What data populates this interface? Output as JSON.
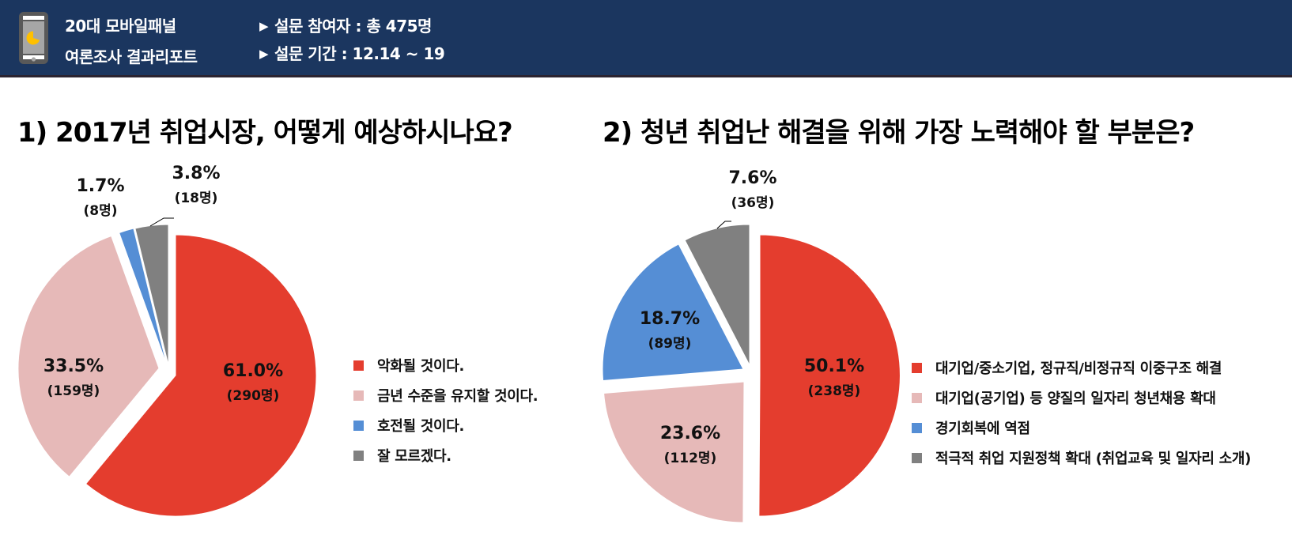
{
  "header": {
    "brand_line1": "20대 모바일패널",
    "brand_line2": "여론조사 결과리포트",
    "meta_arrow": "▶",
    "participants": "설문 참여자 : 총 475명",
    "period": "설문 기간 : 12.14 ~ 19",
    "icon": "phone-pie-icon"
  },
  "colors": {
    "header_bg": "#1B365F",
    "red": "#E43D2E",
    "pink": "#E6B9B8",
    "blue": "#558ED5",
    "grey": "#808080"
  },
  "questions": [
    {
      "title": "1) 2017년 취업시장, 어떻게 예상하시나요?",
      "slices": [
        {
          "label": "악화될 것이다.",
          "pct": "61.0%",
          "count": "(290명)"
        },
        {
          "label": "금년 수준을 유지할 것이다.",
          "pct": "33.5%",
          "count": "(159명)"
        },
        {
          "label": "호전될 것이다.",
          "pct": "1.7%",
          "count": "(8명)"
        },
        {
          "label": "잘 모르겠다.",
          "pct": "3.8%",
          "count": "(18명)"
        }
      ]
    },
    {
      "title": "2) 청년 취업난 해결을 위해 가장 노력해야 할 부분은?",
      "slices": [
        {
          "label": "대기업/중소기업, 정규직/비정규직 이중구조 해결",
          "pct": "50.1%",
          "count": "(238명)"
        },
        {
          "label": "대기업(공기업) 등 양질의 일자리 청년채용 확대",
          "pct": "23.6%",
          "count": "(112명)"
        },
        {
          "label": "경기회복에 역점",
          "pct": "18.7%",
          "count": "(89명)"
        },
        {
          "label": "적극적 취업 지원정책 확대 (취업교육 및 일자리 소개)",
          "pct": "7.6%",
          "count": "(36명)"
        }
      ]
    }
  ],
  "chart_data": [
    {
      "type": "pie",
      "title": "1) 2017년 취업시장, 어떻게 예상하시나요?",
      "categories": [
        "악화될 것이다.",
        "금년 수준을 유지할 것이다.",
        "호전될 것이다.",
        "잘 모르겠다."
      ],
      "values": [
        61.0,
        33.5,
        1.7,
        3.8
      ],
      "counts": [
        290,
        159,
        8,
        18
      ],
      "colors": [
        "#E43D2E",
        "#E6B9B8",
        "#558ED5",
        "#808080"
      ],
      "legend_position": "right",
      "exploded": true,
      "start_angle": "12 o'clock, clockwise"
    },
    {
      "type": "pie",
      "title": "2) 청년 취업난 해결을 위해 가장 노력해야 할 부분은?",
      "categories": [
        "대기업/중소기업, 정규직/비정규직 이중구조 해결",
        "대기업(공기업) 등 양질의 일자리 청년채용 확대",
        "경기회복에 역점",
        "적극적 취업 지원정책 확대 (취업교육 및 일자리 소개)"
      ],
      "values": [
        50.1,
        23.6,
        18.7,
        7.6
      ],
      "counts": [
        238,
        112,
        89,
        36
      ],
      "colors": [
        "#E43D2E",
        "#E6B9B8",
        "#558ED5",
        "#808080"
      ],
      "legend_position": "right",
      "exploded": true,
      "start_angle": "12 o'clock, clockwise"
    }
  ]
}
